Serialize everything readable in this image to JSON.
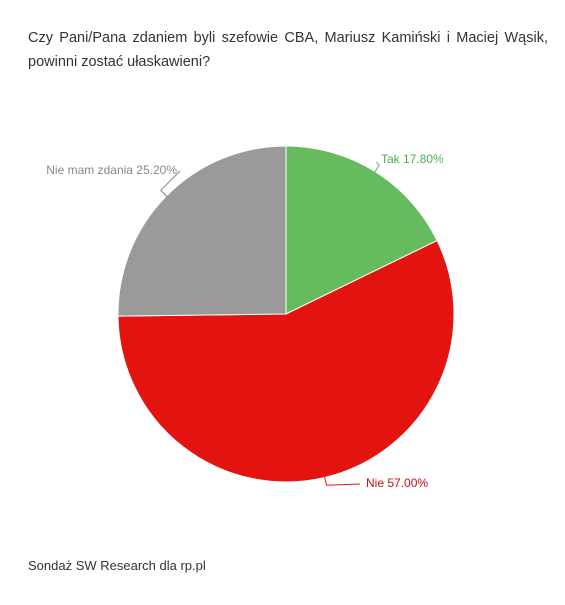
{
  "chart_data": {
    "type": "pie",
    "title": "Czy Pani/Pana zdaniem byli szefowie CBA, Mariusz Kamiński i Maciej Wąsik, powinni zostać ułaskawieni?",
    "slices": [
      {
        "label": "Tak",
        "value": 17.8,
        "display": "Tak 17.80%",
        "color": "#66bb5e"
      },
      {
        "label": "Nie",
        "value": 57.0,
        "display": "Nie 57.00%",
        "color": "#e3140f"
      },
      {
        "label": "Nie mam zdania",
        "value": 25.2,
        "display": "Nie mam zdania 25.20%",
        "color": "#9a9a9a"
      }
    ],
    "start_angle": "12 o'clock",
    "direction": "clockwise",
    "legend": "none",
    "source": "Sondaż SW Research dla rp.pl"
  }
}
